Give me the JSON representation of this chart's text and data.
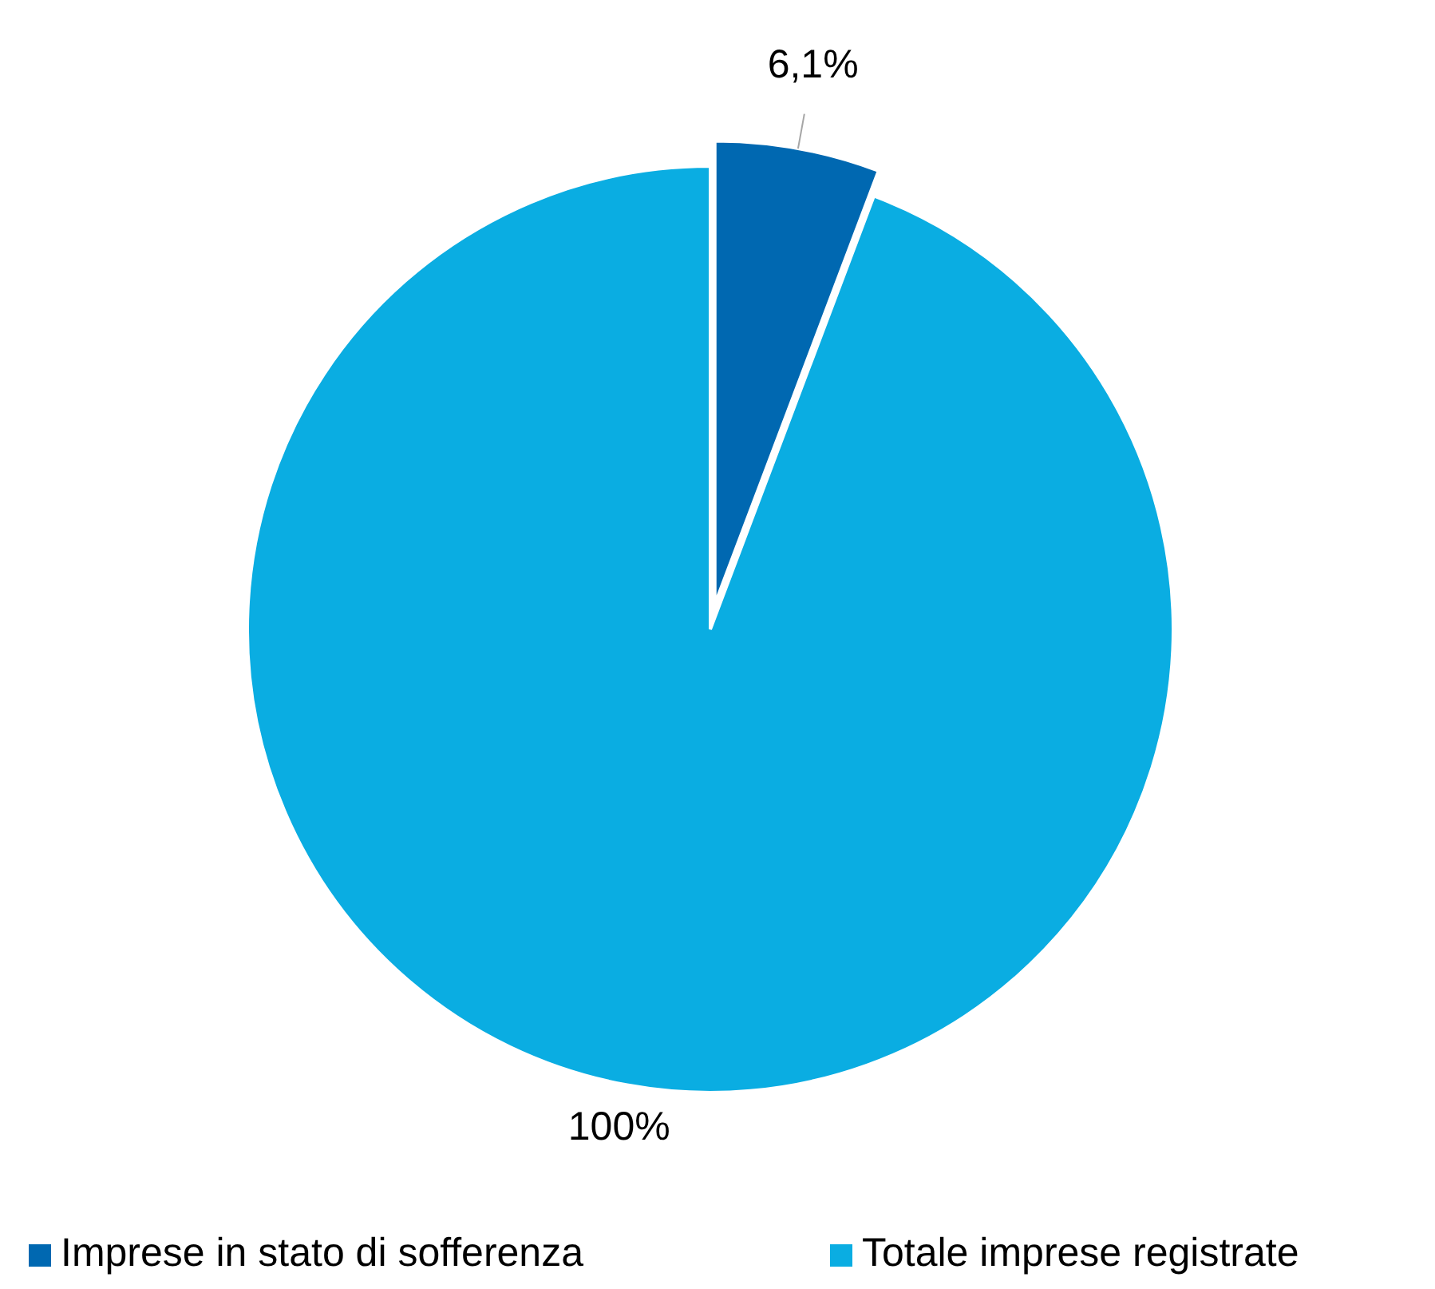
{
  "chart_data": {
    "type": "pie",
    "categories": [
      "Imprese in stato di sofferenza",
      "Totale imprese registrate"
    ],
    "values": [
      6.1,
      100
    ],
    "colors": [
      "#0068b1",
      "#0aade2"
    ],
    "value_labels": [
      "6,1%",
      "100%"
    ],
    "legend": "bottom"
  }
}
